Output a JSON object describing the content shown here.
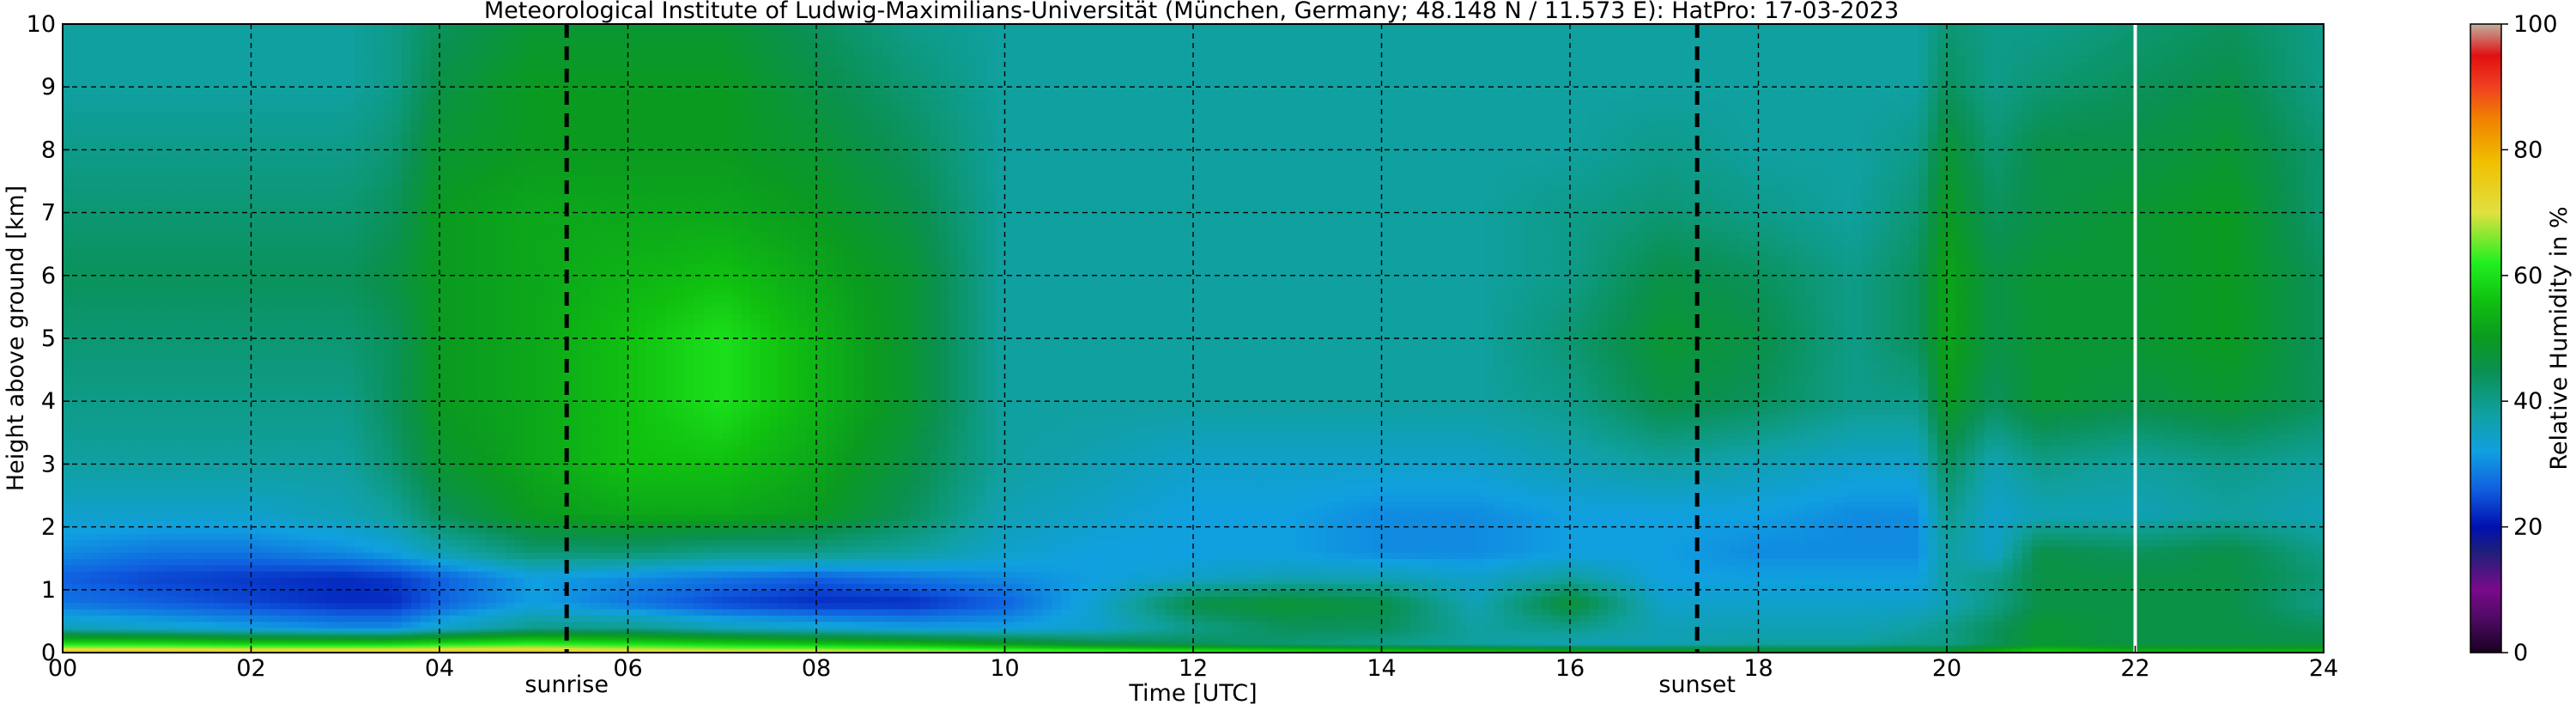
{
  "chart_data": {
    "type": "heatmap",
    "title": "Meteorological Institute of Ludwig-Maximilians-Universität (München, Germany; 48.148 N / 11.573 E):    HatPro: 17-03-2023",
    "xlabel": "Time [UTC]",
    "ylabel": "Height above ground [km]",
    "xlim": [
      0,
      24
    ],
    "ylim": [
      0,
      10
    ],
    "x_ticks": [
      "00",
      "02",
      "04",
      "06",
      "08",
      "10",
      "12",
      "14",
      "16",
      "18",
      "20",
      "22",
      "24"
    ],
    "y_ticks": [
      "0",
      "1",
      "2",
      "3",
      "4",
      "5",
      "6",
      "7",
      "8",
      "9",
      "10"
    ],
    "grid": true,
    "markers": [
      {
        "label": "sunrise",
        "x": 5.35
      },
      {
        "label": "sunset",
        "x": 17.35
      }
    ],
    "data_gap_x": 22.0,
    "colorbar": {
      "label": "Relative Humidity in %",
      "min": 0,
      "max": 100,
      "ticks": [
        "0",
        "20",
        "40",
        "60",
        "80",
        "100"
      ],
      "colors": [
        {
          "value": 0,
          "color": "#1a0020"
        },
        {
          "value": 5,
          "color": "#4a0a60"
        },
        {
          "value": 10,
          "color": "#7a0a8a"
        },
        {
          "value": 16,
          "color": "#1f1f7a"
        },
        {
          "value": 20,
          "color": "#0010b0"
        },
        {
          "value": 26,
          "color": "#1060e0"
        },
        {
          "value": 32,
          "color": "#10a0e0"
        },
        {
          "value": 38,
          "color": "#10a0a0"
        },
        {
          "value": 45,
          "color": "#0a9050"
        },
        {
          "value": 50,
          "color": "#0a9a20"
        },
        {
          "value": 56,
          "color": "#10c010"
        },
        {
          "value": 62,
          "color": "#20f020"
        },
        {
          "value": 70,
          "color": "#e0e040"
        },
        {
          "value": 78,
          "color": "#f0c000"
        },
        {
          "value": 85,
          "color": "#f08000"
        },
        {
          "value": 90,
          "color": "#f04020"
        },
        {
          "value": 95,
          "color": "#e01010"
        },
        {
          "value": 100,
          "color": "#c0b0a0"
        }
      ]
    },
    "humidity_field": {
      "x": [
        0,
        1,
        2,
        3,
        3.5,
        4,
        5,
        6,
        7,
        8,
        9,
        10,
        11,
        12,
        13,
        14,
        15,
        16,
        17,
        18,
        19,
        19.7,
        20,
        20.5,
        21,
        22,
        23,
        24
      ],
      "y": [
        0,
        0.15,
        0.4,
        0.8,
        1.2,
        1.6,
        2.2,
        3,
        4,
        5,
        6,
        7,
        8,
        9,
        10
      ],
      "values": [
        [
          78,
          78,
          78,
          78,
          78,
          78,
          78,
          76,
          74,
          74,
          72,
          70,
          68,
          66,
          64,
          62,
          60,
          58,
          56,
          52,
          52,
          52,
          52,
          56,
          60,
          56,
          56,
          56
        ],
        [
          60,
          60,
          58,
          58,
          58,
          60,
          62,
          60,
          58,
          56,
          54,
          50,
          46,
          44,
          42,
          40,
          38,
          36,
          36,
          38,
          38,
          40,
          40,
          44,
          48,
          46,
          46,
          46
        ],
        [
          36,
          34,
          32,
          30,
          30,
          34,
          40,
          40,
          36,
          34,
          32,
          32,
          34,
          40,
          44,
          44,
          38,
          40,
          36,
          36,
          36,
          38,
          40,
          44,
          48,
          46,
          46,
          44
        ],
        [
          28,
          26,
          24,
          22,
          22,
          26,
          32,
          28,
          24,
          22,
          22,
          26,
          34,
          46,
          48,
          46,
          36,
          48,
          34,
          34,
          34,
          34,
          36,
          40,
          46,
          46,
          46,
          40
        ],
        [
          26,
          24,
          23,
          22,
          23,
          26,
          32,
          30,
          28,
          26,
          28,
          30,
          32,
          34,
          36,
          36,
          34,
          38,
          32,
          32,
          32,
          32,
          38,
          40,
          46,
          46,
          46,
          42
        ],
        [
          30,
          28,
          28,
          30,
          32,
          36,
          42,
          42,
          40,
          40,
          38,
          34,
          32,
          32,
          32,
          30,
          30,
          32,
          32,
          30,
          30,
          30,
          38,
          34,
          46,
          44,
          46,
          40
        ],
        [
          34,
          34,
          34,
          36,
          38,
          44,
          50,
          52,
          52,
          50,
          44,
          36,
          34,
          32,
          32,
          30,
          30,
          32,
          32,
          32,
          30,
          30,
          40,
          34,
          36,
          36,
          38,
          36
        ],
        [
          38,
          38,
          38,
          38,
          42,
          48,
          52,
          56,
          56,
          52,
          46,
          38,
          36,
          34,
          34,
          34,
          34,
          36,
          38,
          36,
          34,
          34,
          44,
          36,
          40,
          38,
          40,
          38
        ],
        [
          40,
          40,
          40,
          40,
          44,
          50,
          52,
          56,
          60,
          54,
          48,
          38,
          38,
          38,
          38,
          38,
          38,
          40,
          46,
          44,
          40,
          40,
          50,
          44,
          48,
          46,
          48,
          44
        ],
        [
          42,
          42,
          42,
          42,
          44,
          50,
          52,
          56,
          60,
          54,
          48,
          38,
          38,
          38,
          38,
          38,
          38,
          42,
          48,
          46,
          40,
          44,
          52,
          46,
          48,
          48,
          50,
          44
        ],
        [
          44,
          44,
          44,
          44,
          46,
          50,
          52,
          54,
          56,
          52,
          48,
          38,
          38,
          38,
          38,
          38,
          38,
          40,
          46,
          44,
          40,
          44,
          52,
          46,
          48,
          48,
          50,
          44
        ],
        [
          42,
          42,
          42,
          42,
          44,
          50,
          52,
          52,
          52,
          50,
          46,
          38,
          38,
          38,
          38,
          38,
          38,
          40,
          42,
          40,
          38,
          42,
          50,
          44,
          46,
          48,
          50,
          42
        ],
        [
          40,
          40,
          40,
          40,
          42,
          48,
          50,
          50,
          50,
          48,
          44,
          38,
          38,
          38,
          38,
          38,
          38,
          38,
          40,
          38,
          38,
          40,
          48,
          42,
          46,
          46,
          48,
          42
        ],
        [
          38,
          38,
          38,
          38,
          40,
          46,
          50,
          50,
          50,
          46,
          42,
          38,
          38,
          38,
          38,
          38,
          38,
          38,
          38,
          38,
          38,
          38,
          44,
          40,
          42,
          44,
          46,
          40
        ],
        [
          38,
          38,
          38,
          38,
          40,
          44,
          48,
          48,
          48,
          44,
          40,
          38,
          38,
          38,
          38,
          38,
          38,
          38,
          38,
          38,
          38,
          38,
          42,
          40,
          40,
          42,
          44,
          40
        ]
      ]
    }
  }
}
